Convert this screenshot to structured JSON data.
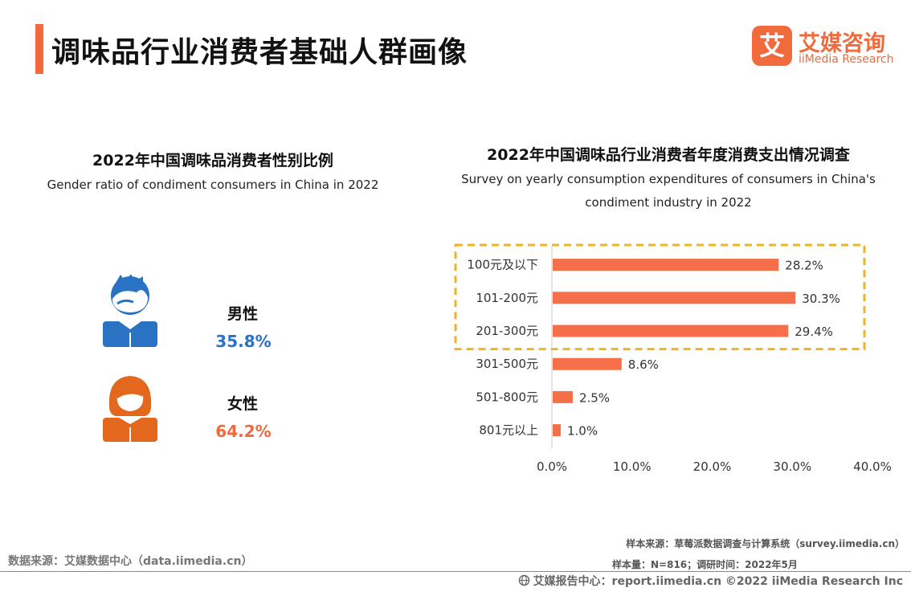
{
  "header": {
    "title": "调味品行业消费者基础人群画像"
  },
  "brand": {
    "logo_char": "艾",
    "name_cn": "艾媒咨询",
    "name_en": "iiMedia Research"
  },
  "gender_panel": {
    "title": "2022年中国调味品消费者性别比例",
    "subtitle": "Gender ratio of condiment consumers in China in 2022",
    "male": {
      "label": "男性",
      "value": "35.8%",
      "color": "#2a73c4"
    },
    "female": {
      "label": "女性",
      "value": "64.2%",
      "color": "#f06a3c"
    }
  },
  "chart_panel": {
    "title": "2022年中国调味品行业消费者年度消费支出情况调查",
    "subtitle_line1": "Survey on yearly consumption expenditures of consumers in China's",
    "subtitle_line2": "condiment industry in 2022"
  },
  "chart_data": {
    "type": "bar",
    "orientation": "horizontal",
    "categories": [
      "100元及以下",
      "101-200元",
      "201-300元",
      "301-500元",
      "501-800元",
      "801元以上"
    ],
    "values": [
      28.2,
      30.3,
      29.4,
      8.6,
      2.5,
      1.0
    ],
    "value_labels": [
      "28.2%",
      "30.3%",
      "29.4%",
      "8.6%",
      "2.5%",
      "1.0%"
    ],
    "xlim": [
      0,
      40
    ],
    "xticks": [
      "0.0%",
      "10.0%",
      "20.0%",
      "30.0%",
      "40.0%"
    ],
    "bar_color": "#f5704a",
    "highlight_color": "#f0b323",
    "highlighted_categories": [
      "100元及以下",
      "101-200元",
      "201-300元"
    ],
    "title": "2022年中国调味品行业消费者年度消费支出情况调查"
  },
  "footer": {
    "data_source": "数据来源：艾媒数据中心（data.iimedia.cn）",
    "sample_source": "样本来源：草莓派数据调查与计算系统（survey.iimedia.cn）",
    "sample_size": "样本量：N=816；调研时间：2022年5月",
    "report_center": "艾媒报告中心：report.iimedia.cn  ©2022  iiMedia Research  Inc"
  }
}
